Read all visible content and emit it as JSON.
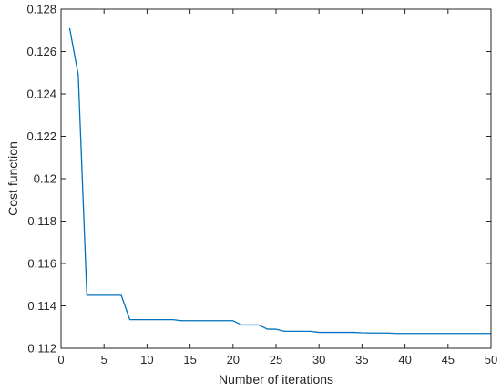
{
  "chart_data": {
    "type": "line",
    "title": "",
    "xlabel": "Number of iterations",
    "ylabel": "Cost function",
    "xlim": [
      0,
      50
    ],
    "ylim": [
      0.112,
      0.128
    ],
    "x_ticks": [
      0,
      5,
      10,
      15,
      20,
      25,
      30,
      35,
      40,
      45,
      50
    ],
    "x_tick_labels": [
      "0",
      "5",
      "10",
      "15",
      "20",
      "25",
      "30",
      "35",
      "40",
      "45",
      "50"
    ],
    "y_ticks": [
      0.112,
      0.114,
      0.116,
      0.118,
      0.12,
      0.122,
      0.124,
      0.126,
      0.128
    ],
    "y_tick_labels": [
      "0.112",
      "0.114",
      "0.116",
      "0.118",
      "0.12",
      "0.122",
      "0.124",
      "0.126",
      "0.128"
    ],
    "grid": false,
    "line_color": "#0072BD",
    "series": [
      {
        "x": [
          1,
          2,
          3,
          4,
          5,
          6,
          7,
          8,
          9,
          10,
          11,
          12,
          13,
          14,
          15,
          16,
          17,
          18,
          19,
          20,
          21,
          22,
          23,
          24,
          25,
          26,
          27,
          28,
          29,
          30,
          31,
          32,
          33,
          34,
          35,
          36,
          37,
          38,
          39,
          40,
          41,
          42,
          43,
          44,
          45,
          46,
          47,
          48,
          49,
          50
        ],
        "values": [
          0.1271,
          0.1249,
          0.1145,
          0.1145,
          0.1145,
          0.1145,
          0.1145,
          0.11335,
          0.11335,
          0.11335,
          0.11335,
          0.11335,
          0.11335,
          0.1133,
          0.1133,
          0.1133,
          0.1133,
          0.1133,
          0.1133,
          0.1133,
          0.1131,
          0.1131,
          0.1131,
          0.1129,
          0.1129,
          0.1128,
          0.1128,
          0.1128,
          0.1128,
          0.11275,
          0.11275,
          0.11275,
          0.11275,
          0.11275,
          0.11273,
          0.11272,
          0.11272,
          0.11272,
          0.1127,
          0.1127,
          0.1127,
          0.1127,
          0.1127,
          0.1127,
          0.1127,
          0.1127,
          0.1127,
          0.1127,
          0.1127,
          0.1127
        ]
      }
    ]
  }
}
